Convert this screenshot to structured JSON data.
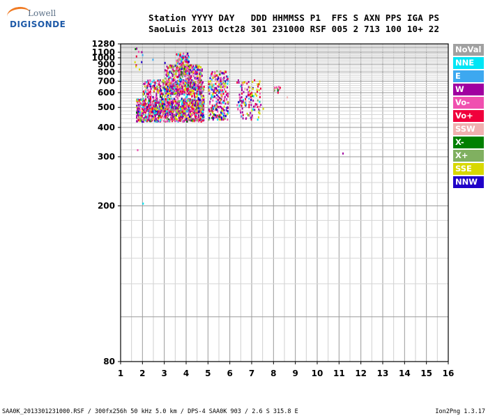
{
  "logo": {
    "line1": "Lowell",
    "line2": "DIGISONDE"
  },
  "header": {
    "line1": "Station YYYY DAY   DDD HHMMSS P1  FFS S AXN PPS IGA PS",
    "line2": "SaoLuis 2013 Oct28 301 231000 RSF 005 2 713 100 10+ 22"
  },
  "footer": {
    "left": "SAA0K_2013301231000.RSF / 300fx256h 50 kHz 5.0 km / DPS-4 SAA0K 903 / 2.6 S 315.8 E",
    "right": "Ion2Png 1.3.17"
  },
  "legend": [
    {
      "label": "NoVal",
      "color": "#a0a0a0"
    },
    {
      "label": "NNE",
      "color": "#00e5f5"
    },
    {
      "label": "E",
      "color": "#3da8f0"
    },
    {
      "label": "W",
      "color": "#a000a0"
    },
    {
      "label": "Vo-",
      "color": "#f050b0"
    },
    {
      "label": "Vo+",
      "color": "#f0003c"
    },
    {
      "label": "SSW",
      "color": "#f0b0b0"
    },
    {
      "label": "X-",
      "color": "#008000"
    },
    {
      "label": "X+",
      "color": "#80b060"
    },
    {
      "label": "SSE",
      "color": "#d8d800"
    },
    {
      "label": "NNW",
      "color": "#2000c8"
    }
  ],
  "chart_data": {
    "type": "scatter",
    "x_ticks": [
      "1",
      "2",
      "3",
      "4",
      "5",
      "6",
      "7",
      "8",
      "9",
      "10",
      "11",
      "12",
      "13",
      "14",
      "15",
      "16"
    ],
    "y_ticks": [
      "80",
      "200",
      "300",
      "400",
      "500",
      "600",
      "700",
      "800",
      "900",
      "1000",
      "1100",
      "1280"
    ],
    "xlim": [
      1,
      16
    ],
    "ylim": [
      80,
      1280
    ],
    "grid": true,
    "clusters": [
      {
        "xmin": 1.7,
        "xmax": 4.8,
        "ymin": 430,
        "ymax": 560,
        "count": 900
      },
      {
        "xmin": 2.0,
        "xmax": 4.8,
        "ymin": 480,
        "ymax": 720,
        "count": 650
      },
      {
        "xmin": 3.0,
        "xmax": 4.7,
        "ymin": 600,
        "ymax": 900,
        "count": 420
      },
      {
        "xmin": 3.5,
        "xmax": 4.1,
        "ymin": 850,
        "ymax": 1100,
        "count": 90
      },
      {
        "xmin": 5.0,
        "xmax": 5.9,
        "ymin": 440,
        "ymax": 760,
        "count": 260
      },
      {
        "xmin": 5.1,
        "xmax": 5.8,
        "ymin": 760,
        "ymax": 830,
        "count": 25
      },
      {
        "xmin": 6.3,
        "xmax": 7.4,
        "ymin": 440,
        "ymax": 720,
        "count": 130
      },
      {
        "xmin": 8.0,
        "xmax": 8.3,
        "ymin": 600,
        "ymax": 660,
        "count": 14
      },
      {
        "xmin": 1.6,
        "xmax": 2.0,
        "ymin": 800,
        "ymax": 1230,
        "count": 10
      }
    ],
    "points": [
      {
        "x": 11.15,
        "y": 312
      },
      {
        "x": 8.6,
        "y": 572
      },
      {
        "x": 7.5,
        "y": 498
      },
      {
        "x": 2.0,
        "y": 205
      },
      {
        "x": 1.75,
        "y": 322
      },
      {
        "x": 1.65,
        "y": 1185
      },
      {
        "x": 3.0,
        "y": 935
      },
      {
        "x": 2.45,
        "y": 985
      }
    ]
  }
}
